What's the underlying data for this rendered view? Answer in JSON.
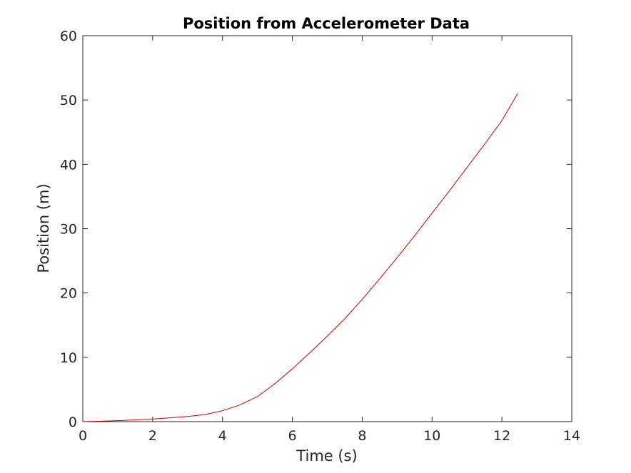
{
  "chart_data": {
    "type": "line",
    "title": "Position from Accelerometer Data",
    "xlabel": "Time (s)",
    "ylabel": "Position (m)",
    "xlim": [
      0,
      14
    ],
    "ylim": [
      0,
      60
    ],
    "xticks": [
      "0",
      "2",
      "4",
      "6",
      "8",
      "10",
      "12",
      "14"
    ],
    "yticks": [
      "0",
      "10",
      "20",
      "30",
      "40",
      "50",
      "60"
    ],
    "grid": false,
    "legend": "none",
    "series": [
      {
        "color": "#cc0000",
        "x": [
          0,
          1,
          2,
          3,
          3.5,
          4,
          4.5,
          5,
          5.5,
          6,
          6.5,
          7,
          7.5,
          8,
          8.5,
          9,
          9.5,
          10,
          10.5,
          11,
          11.5,
          12,
          12.45
        ],
        "y": [
          0,
          0.15,
          0.4,
          0.8,
          1.1,
          1.7,
          2.6,
          3.9,
          5.9,
          8.2,
          10.7,
          13.3,
          16.0,
          19.0,
          22.2,
          25.5,
          28.9,
          32.4,
          35.9,
          39.5,
          43.1,
          46.8,
          51.0
        ]
      }
    ]
  }
}
